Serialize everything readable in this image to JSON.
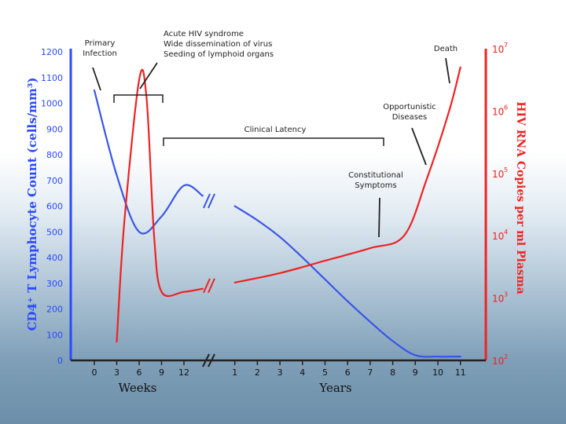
{
  "chart_data": {
    "type": "line",
    "title": "",
    "y_left": {
      "label": "CD4⁺ T Lymphocyte Count (cells/mm³)",
      "ticks": [
        0,
        100,
        200,
        300,
        400,
        500,
        600,
        700,
        800,
        900,
        1000,
        1100,
        1200
      ],
      "range": [
        0,
        1200
      ],
      "color": "#2b49ff"
    },
    "y_right": {
      "label": "HIV RNA Copies per ml Plasma",
      "scale": "log",
      "ticks": [
        {
          "base": "10",
          "exp": "2"
        },
        {
          "base": "10",
          "exp": "3"
        },
        {
          "base": "10",
          "exp": "4"
        },
        {
          "base": "10",
          "exp": "5"
        },
        {
          "base": "10",
          "exp": "6"
        },
        {
          "base": "10",
          "exp": "7"
        }
      ],
      "range": [
        2,
        7
      ],
      "color": "#ee2222"
    },
    "x_weeks": {
      "label": "Weeks",
      "ticks": [
        "0",
        "3",
        "6",
        "9",
        "12"
      ]
    },
    "x_years": {
      "label": "Years",
      "ticks": [
        "1",
        "2",
        "3",
        "4",
        "5",
        "6",
        "7",
        "8",
        "9",
        "10",
        "11"
      ]
    },
    "series": [
      {
        "key": "cd4",
        "axis": "left",
        "color": "#3a55e8",
        "segments": [
          [
            [
              "0",
              1050
            ],
            [
              "3",
              720
            ],
            [
              "6",
              500
            ],
            [
              "9",
              560
            ],
            [
              "12",
              680
            ],
            [
              "14.5",
              640
            ]
          ],
          [
            [
              "1",
              600
            ],
            [
              "2",
              545
            ],
            [
              "3",
              480
            ],
            [
              "4",
              400
            ],
            [
              "5",
              315
            ],
            [
              "6",
              230
            ],
            [
              "7",
              150
            ],
            [
              "8",
              75
            ],
            [
              "9",
              20
            ],
            [
              "10",
              15
            ],
            [
              "11",
              15
            ]
          ]
        ]
      },
      {
        "key": "hiv_rna",
        "axis": "right",
        "color": "#ee2222",
        "segments": [
          [
            [
              "3",
              2.3
            ],
            [
              "4",
              4.2
            ],
            [
              "6",
              6.5
            ],
            [
              "7",
              6.2
            ],
            [
              "8",
              4.0
            ],
            [
              "9",
              3.1
            ],
            [
              "12",
              3.1
            ],
            [
              "14.5",
              3.15
            ]
          ],
          [
            [
              "1",
              3.25
            ],
            [
              "3",
              3.4
            ],
            [
              "5",
              3.6
            ],
            [
              "7",
              3.8
            ],
            [
              "8.5",
              4.0
            ],
            [
              "9.5",
              4.9
            ],
            [
              "10.5",
              6.0
            ],
            [
              "11",
              6.7
            ]
          ]
        ]
      }
    ],
    "annotations": [
      {
        "key": "primary",
        "lines": [
          "Primary",
          "Infection"
        ]
      },
      {
        "key": "acute",
        "lines": [
          "Acute HIV syndrome",
          "Wide dissemination of virus",
          "Seeding of lymphoid organs"
        ]
      },
      {
        "key": "latency",
        "lines": [
          "Clinical Latency"
        ]
      },
      {
        "key": "constitutional",
        "lines": [
          "Constitutional",
          "Symptoms"
        ]
      },
      {
        "key": "opportunistic",
        "lines": [
          "Opportunistic",
          "Diseases"
        ]
      },
      {
        "key": "death",
        "lines": [
          "Death"
        ]
      }
    ]
  }
}
